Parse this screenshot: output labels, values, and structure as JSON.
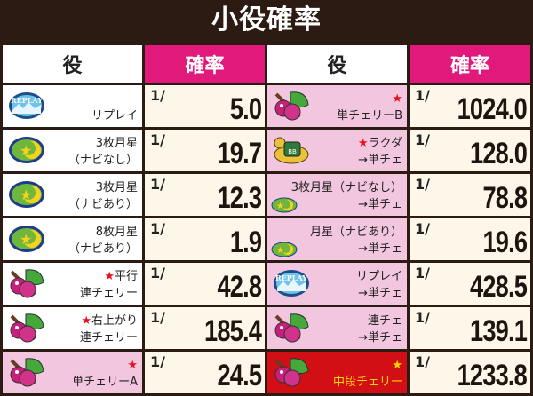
{
  "title": "小役確率",
  "headers": {
    "role": "役",
    "prob": "確率"
  },
  "fraction_prefix": "1/",
  "left": [
    {
      "icon": "replay-icon",
      "star": "",
      "label": "リプレイ",
      "value": "5.0",
      "bg": "white"
    },
    {
      "icon": "moon-star-icon",
      "star": "",
      "label": "3枚月星\n（ナビなし）",
      "value": "19.7",
      "bg": "white"
    },
    {
      "icon": "moon-star-icon",
      "star": "",
      "label": "3枚月星\n（ナビあり）",
      "value": "12.3",
      "bg": "white"
    },
    {
      "icon": "moon-star-icon",
      "star": "",
      "label": "8枚月星\n（ナビあり）",
      "value": "1.9",
      "bg": "white"
    },
    {
      "icon": "cherry-icon",
      "star": "★",
      "label": "平行\n連チェリー",
      "value": "42.8",
      "bg": "white"
    },
    {
      "icon": "cherry-icon",
      "star": "★",
      "label": "右上がり\n連チェリー",
      "value": "185.4",
      "bg": "white"
    },
    {
      "icon": "cherry-icon",
      "star": "★",
      "label": "\n単チェリーA",
      "value": "24.5",
      "bg": "pink"
    }
  ],
  "right": [
    {
      "icon": "cherry-icon",
      "star": "★",
      "label": "\n単チェリーB",
      "value": "1024.0",
      "bg": "pink"
    },
    {
      "icon": "camel-icon",
      "star": "★",
      "label": "ラクダ\n→単チェ",
      "value": "128.0",
      "bg": "pink"
    },
    {
      "icon": "moon-star-small-icon",
      "star": "",
      "label": "3枚月星（ナビなし）\n→単チェ",
      "value": "78.8",
      "bg": "pink"
    },
    {
      "icon": "moon-star-small-icon",
      "star": "",
      "label": "月星（ナビあり）\n→単チェ",
      "value": "19.6",
      "bg": "pink"
    },
    {
      "icon": "replay-icon",
      "star": "",
      "label": "リプレイ\n→単チェ",
      "value": "428.5",
      "bg": "pink"
    },
    {
      "icon": "cherry-icon",
      "star": "",
      "label": "連チェ\n→単チェ",
      "value": "139.1",
      "bg": "pink"
    },
    {
      "icon": "cherry-icon",
      "star": "★",
      "label": "\n中段チェリー",
      "value": "1233.8",
      "bg": "red"
    }
  ],
  "colors": {
    "header_pink": "#e0197a",
    "row_pink": "#f2c6de",
    "highlight_red": "#d30f16",
    "star_red": "#e5121b",
    "star_yellow": "#ffd800",
    "background": "#2b1b12"
  }
}
